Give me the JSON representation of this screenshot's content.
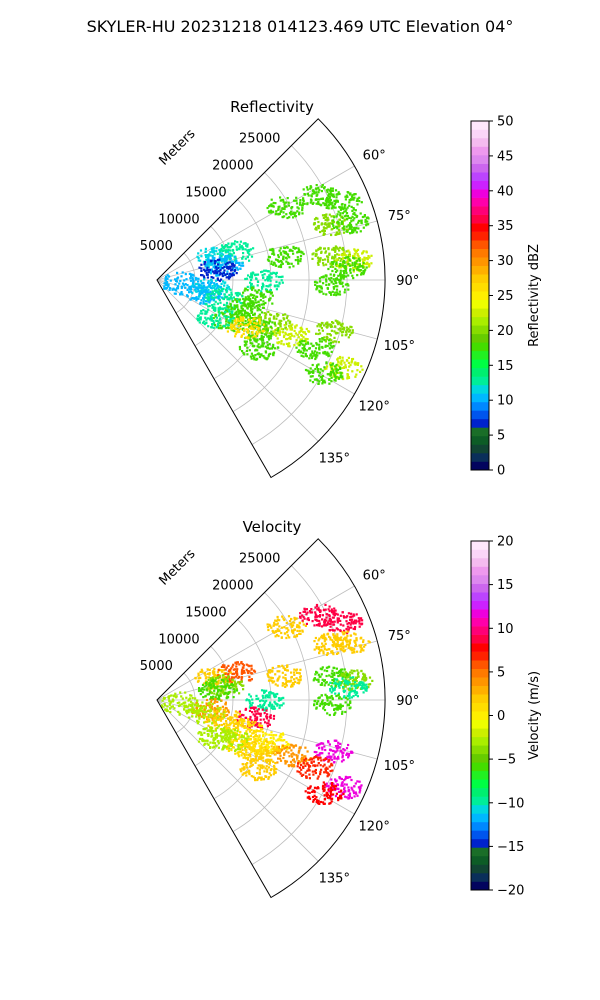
{
  "figure_title": "SKYLER-HU  20231218  014123.469 UTC Elevation 04°",
  "range_label": "Meters",
  "chart_data": [
    {
      "type": "polar-sector",
      "title": "Reflectivity",
      "range_ticks": [
        "5000",
        "10000",
        "15000",
        "20000",
        "25000"
      ],
      "azimuth_ticks": [
        "60°",
        "75°",
        "90°",
        "105°",
        "120°",
        "135°"
      ],
      "azimuth_range_deg": [
        45,
        150
      ],
      "range_max_m": 30000,
      "colorbar": {
        "label": "Reflectivity dBZ",
        "ticks": [
          "0",
          "5",
          "10",
          "15",
          "20",
          "25",
          "30",
          "35",
          "40",
          "45",
          "50"
        ],
        "vmin": 0,
        "vmax": 50,
        "colors": [
          "#03045e",
          "#0a2e5a",
          "#114433",
          "#0d5c26",
          "#1a6e28",
          "#0022cc",
          "#0055ee",
          "#0088ff",
          "#00b8ff",
          "#00d8e0",
          "#00ee99",
          "#00f070",
          "#00ff44",
          "#22f022",
          "#44dd00",
          "#66cc00",
          "#88dd00",
          "#aaee00",
          "#ccf000",
          "#eeff00",
          "#ffee00",
          "#ffdd00",
          "#ffcc00",
          "#ffb000",
          "#ff9500",
          "#ff7a00",
          "#ff5500",
          "#ff2200",
          "#ff0000",
          "#ff0044",
          "#ff0077",
          "#ff00aa",
          "#ee00dd",
          "#cc22ff",
          "#bb44ff",
          "#cc66ee",
          "#dd88ee",
          "#ee99ee",
          "#f5bbf0",
          "#fbd5f8",
          "#ffe8fc"
        ]
      }
    },
    {
      "type": "polar-sector",
      "title": "Velocity",
      "range_ticks": [
        "5000",
        "10000",
        "15000",
        "20000",
        "25000"
      ],
      "azimuth_ticks": [
        "60°",
        "75°",
        "90°",
        "105°",
        "120°",
        "135°"
      ],
      "azimuth_range_deg": [
        45,
        150
      ],
      "range_max_m": 30000,
      "colorbar": {
        "label": "Velocity (m/s)",
        "ticks": [
          "−20",
          "−15",
          "−10",
          "−5",
          "0",
          "5",
          "10",
          "15",
          "20"
        ],
        "vmin": -20,
        "vmax": 20,
        "colors": [
          "#03045e",
          "#0a2e5a",
          "#114433",
          "#0d5c26",
          "#1a6e28",
          "#0022cc",
          "#0055ee",
          "#0088ff",
          "#00b8ff",
          "#00d8e0",
          "#00ee99",
          "#00f070",
          "#00ff44",
          "#22f022",
          "#44dd00",
          "#66cc00",
          "#88dd00",
          "#aaee00",
          "#ccf000",
          "#eeff00",
          "#ffee00",
          "#ffdd00",
          "#ffcc00",
          "#ffb000",
          "#ff9500",
          "#ff7a00",
          "#ff5500",
          "#ff2200",
          "#ff0000",
          "#ff0044",
          "#ff0077",
          "#ff00aa",
          "#ee00dd",
          "#cc22ff",
          "#bb44ff",
          "#cc66ee",
          "#dd88ee",
          "#ee99ee",
          "#f5bbf0",
          "#fbd5f8",
          "#ffe8fc"
        ]
      }
    }
  ],
  "echo_blobs": [
    [
      {
        "az": 60,
        "r": 19500,
        "color": "#44dd00"
      },
      {
        "az": 62,
        "r": 24000,
        "color": "#44dd00"
      },
      {
        "az": 67,
        "r": 26500,
        "color": "#44dd00"
      },
      {
        "az": 72,
        "r": 24000,
        "color": "#88dd00"
      },
      {
        "az": 73,
        "r": 26500,
        "color": "#44dd00"
      },
      {
        "az": 68,
        "r": 8000,
        "color": "#00d8e0"
      },
      {
        "az": 70,
        "r": 11000,
        "color": "#00ee99"
      },
      {
        "az": 77,
        "r": 9000,
        "color": "#00b8ff"
      },
      {
        "az": 80,
        "r": 8000,
        "color": "#0022cc"
      },
      {
        "az": 79,
        "r": 17000,
        "color": "#44dd00"
      },
      {
        "az": 82,
        "r": 23000,
        "color": "#88dd00"
      },
      {
        "az": 84,
        "r": 26000,
        "color": "#ccf000"
      },
      {
        "az": 86,
        "r": 25000,
        "color": "#44dd00"
      },
      {
        "az": 91,
        "r": 23000,
        "color": "#44dd00"
      },
      {
        "az": 90,
        "r": 14000,
        "color": "#00ee99"
      },
      {
        "az": 96,
        "r": 3000,
        "color": "#00b8ff"
      },
      {
        "az": 99,
        "r": 7000,
        "color": "#00d8e0"
      },
      {
        "az": 100,
        "r": 13000,
        "color": "#44dd00"
      },
      {
        "az": 104,
        "r": 6500,
        "color": "#00b8ff"
      },
      {
        "az": 106,
        "r": 9000,
        "color": "#00ee99"
      },
      {
        "az": 108,
        "r": 12000,
        "color": "#44dd00"
      },
      {
        "az": 110,
        "r": 16000,
        "color": "#88dd00"
      },
      {
        "az": 112,
        "r": 19000,
        "color": "#ccf000"
      },
      {
        "az": 116,
        "r": 15000,
        "color": "#44dd00"
      },
      {
        "az": 118,
        "r": 11000,
        "color": "#44dd00"
      },
      {
        "az": 118,
        "r": 13000,
        "color": "#ffdd00"
      },
      {
        "az": 122,
        "r": 9000,
        "color": "#00ee99"
      },
      {
        "az": 124,
        "r": 16000,
        "color": "#44dd00"
      },
      {
        "az": 106,
        "r": 24000,
        "color": "#88dd00"
      },
      {
        "az": 113,
        "r": 22500,
        "color": "#44dd00"
      },
      {
        "az": 115,
        "r": 27000,
        "color": "#ccf000"
      },
      {
        "az": 119,
        "r": 25000,
        "color": "#44dd00"
      }
    ],
    [
      {
        "az": 60,
        "r": 19500,
        "color": "#ffcc00"
      },
      {
        "az": 62,
        "r": 24000,
        "color": "#ff0044"
      },
      {
        "az": 67,
        "r": 26500,
        "color": "#ff0044"
      },
      {
        "az": 72,
        "r": 24000,
        "color": "#ffcc00"
      },
      {
        "az": 73,
        "r": 26500,
        "color": "#ffcc00"
      },
      {
        "az": 68,
        "r": 8000,
        "color": "#ffcc00"
      },
      {
        "az": 70,
        "r": 11000,
        "color": "#ff5500"
      },
      {
        "az": 77,
        "r": 9000,
        "color": "#88dd00"
      },
      {
        "az": 80,
        "r": 8000,
        "color": "#44dd00"
      },
      {
        "az": 79,
        "r": 17000,
        "color": "#ffcc00"
      },
      {
        "az": 82,
        "r": 23000,
        "color": "#44dd00"
      },
      {
        "az": 84,
        "r": 26000,
        "color": "#88dd00"
      },
      {
        "az": 86,
        "r": 25000,
        "color": "#00ee99"
      },
      {
        "az": 91,
        "r": 23000,
        "color": "#44dd00"
      },
      {
        "az": 90,
        "r": 14000,
        "color": "#00ee99"
      },
      {
        "az": 96,
        "r": 3000,
        "color": "#aaee00"
      },
      {
        "az": 99,
        "r": 7000,
        "color": "#ff9500"
      },
      {
        "az": 100,
        "r": 13000,
        "color": "#ff0044"
      },
      {
        "az": 104,
        "r": 6500,
        "color": "#aaee00"
      },
      {
        "az": 106,
        "r": 9000,
        "color": "#ffcc00"
      },
      {
        "az": 108,
        "r": 12000,
        "color": "#ffdd00"
      },
      {
        "az": 110,
        "r": 16000,
        "color": "#ffee00"
      },
      {
        "az": 112,
        "r": 19000,
        "color": "#ff9500"
      },
      {
        "az": 116,
        "r": 15000,
        "color": "#ffcc00"
      },
      {
        "az": 118,
        "r": 11000,
        "color": "#aaee00"
      },
      {
        "az": 118,
        "r": 13000,
        "color": "#ffdd00"
      },
      {
        "az": 122,
        "r": 9000,
        "color": "#aaee00"
      },
      {
        "az": 124,
        "r": 16000,
        "color": "#ffcc00"
      },
      {
        "az": 106,
        "r": 24000,
        "color": "#ee00dd"
      },
      {
        "az": 113,
        "r": 22500,
        "color": "#ff2200"
      },
      {
        "az": 115,
        "r": 27000,
        "color": "#ee00dd"
      },
      {
        "az": 119,
        "r": 25000,
        "color": "#ff0000"
      }
    ]
  ]
}
